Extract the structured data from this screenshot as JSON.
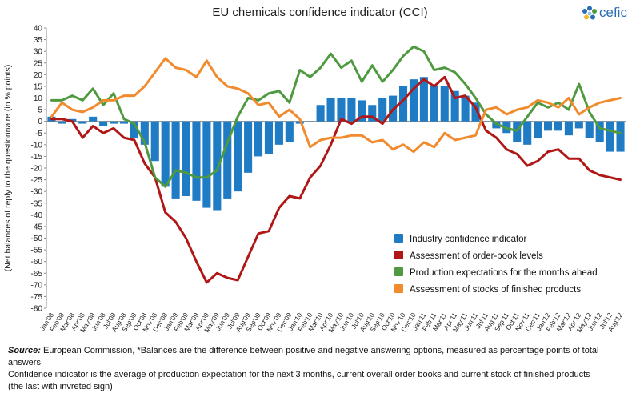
{
  "header": {
    "title": "EU chemicals confidence indicator (CCI)",
    "logo_text": "cefic"
  },
  "footer": {
    "source_label": "Source:",
    "line1": " European Commission, *Balances are the difference between positive and negative answering options, measured as percentage points of total answers.",
    "line2": "Confidence indicator is the average of production expectation for the next 3 months, current overall order books  and current stock of finished products",
    "line3": "(the last with invreted sign)"
  },
  "colors": {
    "bar": "#1f7bc4",
    "order": "#b01818",
    "production": "#4f9a40",
    "stocks": "#f28a2e"
  },
  "chart_data": {
    "type": "bar+line",
    "title": "EU chemicals confidence indicator (CCI)",
    "ylabel": "(Net balances of reply  to the questionnaire (in % points)",
    "ylim": [
      -80,
      40
    ],
    "ytick_step": 5,
    "categories": [
      "Jan'08",
      "Feb'08",
      "Mar'08",
      "Apr'08",
      "May'08",
      "Jun'08",
      "Jul'08",
      "Aug'08",
      "Sep'08",
      "Oct'08",
      "Nov'08",
      "Dec'08",
      "Jan'09",
      "Feb'09",
      "Mar'09",
      "Apr'09",
      "May'09",
      "Jun'09",
      "Jul'09",
      "Aug'09",
      "Sep'09",
      "Oct'09",
      "Nov'09",
      "Dec'09",
      "Jan'10",
      "Feb'10",
      "Mar'10",
      "Apr'10",
      "May'10",
      "Jun'10",
      "Jul'10",
      "Aug'10",
      "Sep'10",
      "Oct'10",
      "Nov'10",
      "Dec'10",
      "Jan'11",
      "Feb'11",
      "Mar'11",
      "Apr'11",
      "May'11",
      "Jun'11",
      "Jul'11",
      "Aug'11",
      "Sep'11",
      "Oct'11",
      "Nov'11",
      "Dec'11",
      "Jan'12",
      "Feb'12",
      "Mar'12",
      "Apr'12",
      "May'12",
      "Jun'12",
      "Jul'12",
      "Aug'12"
    ],
    "xtick_labels": [
      "Jan'08",
      "Feb'08",
      "Mar'08",
      "Apr'08",
      "May'08",
      "Jun'08",
      "Jul'08",
      "Aug'08",
      "Sep'08",
      "Oct'08",
      "Nov'08",
      "Dec'08",
      "Jan'09",
      "Feb'09",
      "Mar'09",
      "Apr'09",
      "May'09",
      "Jun'09",
      "Jul'09",
      "Aug'09",
      "Sep'09",
      "Oct'09",
      "Nov'09",
      "Dec'09",
      "Jan'10",
      "Feb'10",
      "Mar'10",
      "Apr'10",
      "May'10",
      "Jun'10",
      "Jul'10",
      "Aug'10",
      "Sep'10",
      "Oct'10",
      "Nov'10",
      "Dec'10",
      "Jan'11",
      "Feb'11",
      "Mar'11",
      "Apr'11",
      "May'11",
      "Jun'11",
      "Jul'11",
      "Aug'11",
      "Sep'11",
      "Oct'11",
      "Nov'11",
      "Dec'11",
      "Jan'12",
      "Feb'12",
      "Mar'12",
      "Apr'12",
      "May'12",
      "Jun'12",
      "Jul'12",
      "Aug'12"
    ],
    "series": [
      {
        "name": "Industry confidence indicator",
        "kind": "bar",
        "color": "#1f7bc4",
        "values": [
          2,
          -1,
          1,
          -1,
          2,
          -2,
          -1,
          -1,
          -7,
          -10,
          -17,
          -28,
          -33,
          -32,
          -34,
          -37,
          -38,
          -33,
          -30,
          -22,
          -15,
          -14,
          -10,
          -9,
          -1,
          0,
          7,
          10,
          10,
          10,
          9,
          7,
          10,
          11,
          15,
          18,
          19,
          15,
          15,
          13,
          11,
          8,
          0,
          -3,
          -5,
          -9,
          -10,
          -7,
          -4,
          -4,
          -6,
          -3,
          -7,
          -9,
          -13,
          -13
        ]
      },
      {
        "name": "Assessment of order-book levels",
        "kind": "line",
        "color": "#b01818",
        "values": [
          1,
          1,
          0,
          -7,
          -2,
          -5,
          -3,
          -7,
          -8,
          -18,
          -24,
          -39,
          -43,
          -50,
          -60,
          -69,
          -65,
          -67,
          -68,
          -58,
          -48,
          -47,
          -37,
          -32,
          -33,
          -24,
          -19,
          -10,
          1,
          -1,
          2,
          2,
          -1,
          5,
          9,
          14,
          18,
          15,
          19,
          10,
          11,
          6,
          -4,
          -7,
          -12,
          -14,
          -19,
          -17,
          -13,
          -12,
          -16,
          -16,
          -21,
          -23,
          -24,
          -25
        ]
      },
      {
        "name": "Production expectations for the months ahead",
        "kind": "line",
        "color": "#4f9a40",
        "values": [
          9,
          9,
          11,
          9,
          14,
          7,
          12,
          1,
          -1,
          -9,
          -24,
          -28,
          -21,
          -22,
          -24,
          -24,
          -21,
          -9,
          2,
          10,
          9,
          12,
          13,
          8,
          22,
          19,
          23,
          29,
          23,
          26,
          17,
          24,
          17,
          22,
          28,
          32,
          30,
          22,
          23,
          21,
          16,
          10,
          3,
          -1,
          -3,
          -4,
          2,
          8,
          6,
          8,
          5,
          16,
          4,
          -3,
          -4,
          -5
        ]
      },
      {
        "name": "Assessment of stocks of finished products",
        "kind": "line",
        "color": "#f28a2e",
        "values": [
          2,
          8,
          5,
          4,
          6,
          9,
          9,
          11,
          11,
          15,
          21,
          27,
          23,
          22,
          19,
          26,
          19,
          15,
          14,
          12,
          7,
          8,
          2,
          5,
          1,
          -11,
          -8,
          -7,
          -7,
          -6,
          -6,
          -9,
          -8,
          -12,
          -10,
          -13,
          -9,
          -11,
          -5,
          -8,
          -7,
          -6,
          5,
          6,
          3,
          5,
          6,
          9,
          8,
          6,
          10,
          3,
          6,
          8,
          9,
          10
        ]
      }
    ],
    "legend_position": "bottom-right",
    "grid": false
  }
}
